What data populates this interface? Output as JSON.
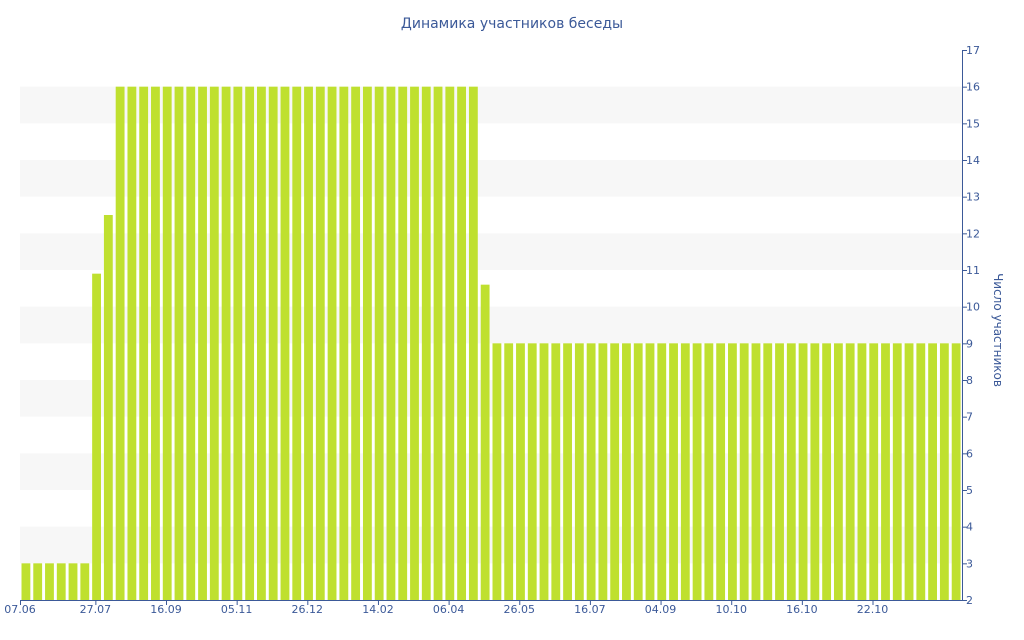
{
  "chart_data": {
    "type": "bar",
    "title": "Динамика участников беседы",
    "xlabel": "",
    "ylabel": "Число участников",
    "y_axis_position": "right",
    "ylim": [
      2,
      17
    ],
    "yticks": [
      2,
      3,
      4,
      5,
      6,
      7,
      8,
      9,
      10,
      11,
      12,
      13,
      14,
      15,
      16,
      17
    ],
    "x_tick_labels": [
      {
        "label": "07.06",
        "index": 0
      },
      {
        "label": "27.07",
        "index": 6
      },
      {
        "label": "16.09",
        "index": 12
      },
      {
        "label": "05.11",
        "index": 18
      },
      {
        "label": "26.12",
        "index": 24
      },
      {
        "label": "14.02",
        "index": 30
      },
      {
        "label": "06.04",
        "index": 36
      },
      {
        "label": "26.05",
        "index": 42
      },
      {
        "label": "16.07",
        "index": 48
      },
      {
        "label": "04.09",
        "index": 54
      },
      {
        "label": "10.10",
        "index": 60
      },
      {
        "label": "16.10",
        "index": 66
      },
      {
        "label": "22.10",
        "index": 72
      }
    ],
    "grid": "alternating horizontal bands",
    "bar_color": "#bfe02f",
    "band_color": "#f7f7f7",
    "text_color": "#3b5998",
    "values": [
      3,
      3,
      3,
      3,
      3,
      3,
      10.9,
      12.5,
      16,
      16,
      16,
      16,
      16,
      16,
      16,
      16,
      16,
      16,
      16,
      16,
      16,
      16,
      16,
      16,
      16,
      16,
      16,
      16,
      16,
      16,
      16,
      16,
      16,
      16,
      16,
      16,
      16,
      16,
      16,
      10.6,
      9,
      9,
      9,
      9,
      9,
      9,
      9,
      9,
      9,
      9,
      9,
      9,
      9,
      9,
      9,
      9,
      9,
      9,
      9,
      9,
      9,
      9,
      9,
      9,
      9,
      9,
      9,
      9,
      9,
      9,
      9,
      9,
      9,
      9,
      9,
      9,
      9,
      9,
      9,
      9
    ]
  }
}
